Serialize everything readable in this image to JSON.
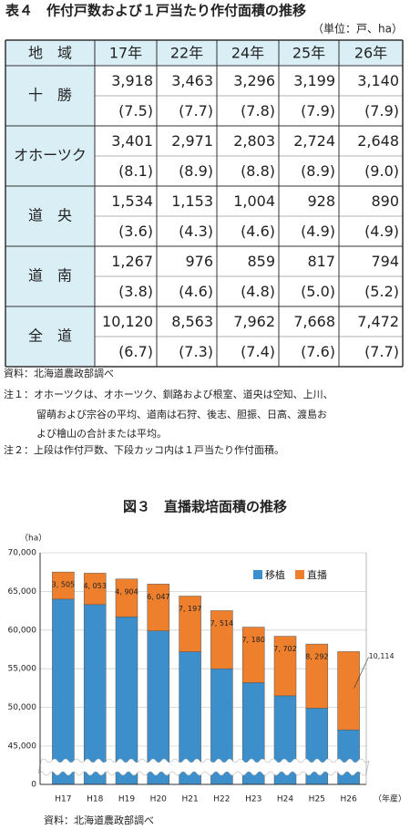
{
  "title": "表４　作付戸数および１戸当たり作付面積の推移",
  "unit": "（単位：戸、ha）",
  "table": {
    "header": [
      "地　域",
      "17年",
      "22年",
      "24年",
      "25年",
      "26年"
    ],
    "rows": [
      {
        "region": "十　勝",
        "counts": [
          "3,918",
          "3,463",
          "3,296",
          "3,199",
          "3,140"
        ],
        "areas": [
          "(7.5)",
          "(7.7)",
          "(7.8)",
          "(7.9)",
          "(7.9)"
        ]
      },
      {
        "region": "オホーツク",
        "counts": [
          "3,401",
          "2,971",
          "2,803",
          "2,724",
          "2,648"
        ],
        "areas": [
          "(8.1)",
          "(8.9)",
          "(8.8)",
          "(8.9)",
          "(9.0)"
        ]
      },
      {
        "region": "道　央",
        "counts": [
          "1,534",
          "1,153",
          "1,004",
          "928",
          "890"
        ],
        "areas": [
          "(3.6)",
          "(4.3)",
          "(4.6)",
          "(4.9)",
          "(4.9)"
        ]
      },
      {
        "region": "道　南",
        "counts": [
          "1,267",
          "976",
          "859",
          "817",
          "794"
        ],
        "areas": [
          "(3.8)",
          "(4.6)",
          "(4.8)",
          "(5.0)",
          "(5.2)"
        ]
      },
      {
        "region": "全　道",
        "counts": [
          "10,120",
          "8,563",
          "7,962",
          "7,668",
          "7,472"
        ],
        "areas": [
          "(6.7)",
          "(7.3)",
          "(7.4)",
          "(7.6)",
          "(7.7)"
        ]
      }
    ]
  },
  "notes": [
    "資料：北海道農政部調べ",
    "注１：オホーツクは、オホーツク、釧路および根室、道央は空知、上川、",
    "留萌および宗谷の平均、道南は石狩、後志、胆振、日高、渡島お",
    "よび檜山の合計または平均。",
    "注２：上段は作付戸数、下段カッコ内は１戸当たり作付面積。"
  ],
  "chart_data": {
    "type": "bar",
    "stacked": true,
    "title": "図３　直播栽培面積の推移",
    "y_label": "（ha）",
    "x_label": "（年産）",
    "source": "資料：北海道農政部調べ",
    "categories": [
      "H17",
      "H18",
      "H19",
      "H20",
      "H21",
      "H22",
      "H23",
      "H24",
      "H25",
      "H26"
    ],
    "series": [
      {
        "name": "移植",
        "color": "#3d8fcb",
        "values": [
          64000,
          63300,
          61700,
          59900,
          57200,
          55000,
          53200,
          51500,
          49900,
          47100
        ]
      },
      {
        "name": "直播",
        "color": "#ee7f2d",
        "values": [
          3505,
          4053,
          4904,
          6047,
          7197,
          7514,
          7180,
          7702,
          8292,
          10114
        ],
        "value_labels": [
          "3, 505",
          "4, 053",
          "4, 904",
          "6, 047",
          "7, 197",
          "7, 514",
          "7, 180",
          "7, 702",
          "8, 292",
          "10,114"
        ]
      }
    ],
    "ylim": [
      0,
      70000
    ],
    "yticks": [
      0,
      {
        "value": 45000,
        "label": "45,000"
      },
      {
        "value": 50000,
        "label": "50,000"
      },
      {
        "value": 55000,
        "label": "55,000"
      },
      {
        "value": 60000,
        "label": "60,000"
      },
      {
        "value": 65000,
        "label": "65,000"
      },
      {
        "value": 70000,
        "label": "70,000"
      }
    ],
    "axis_break": 45000,
    "grid": true,
    "legend": "top-right"
  }
}
